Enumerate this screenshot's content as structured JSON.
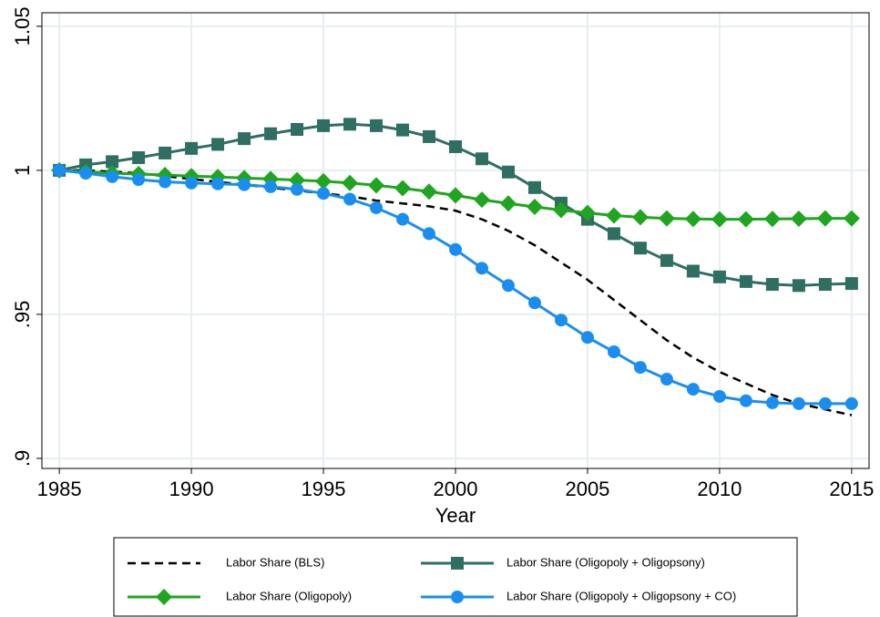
{
  "chart_data": {
    "type": "line",
    "x_label": "Year",
    "x": [
      1985,
      1986,
      1987,
      1988,
      1989,
      1990,
      1991,
      1992,
      1993,
      1994,
      1995,
      1996,
      1997,
      1998,
      1999,
      2000,
      2001,
      2002,
      2003,
      2004,
      2005,
      2006,
      2007,
      2008,
      2009,
      2010,
      2011,
      2012,
      2013,
      2014,
      2015
    ],
    "xlim": [
      1984.34,
      2015.66
    ],
    "xticks": [
      1985,
      1990,
      1995,
      2000,
      2005,
      2010,
      2015
    ],
    "ylim": [
      0.8965,
      1.0547
    ],
    "yticks": [
      {
        "value": 0.9,
        "label": ".9"
      },
      {
        "value": 0.95,
        "label": ".95"
      },
      1,
      1.05
    ],
    "grid": true,
    "series": [
      {
        "name": "Labor Share (BLS)",
        "color": "#000000",
        "marker": "none",
        "dashed": true,
        "values": [
          1.0,
          1.0,
          0.9995,
          0.999,
          0.998,
          0.997,
          0.996,
          0.995,
          0.994,
          0.993,
          0.992,
          0.991,
          0.9895,
          0.9885,
          0.9875,
          0.986,
          0.983,
          0.979,
          0.974,
          0.968,
          0.962,
          0.955,
          0.948,
          0.941,
          0.935,
          0.93,
          0.926,
          0.922,
          0.919,
          0.917,
          0.915
        ]
      },
      {
        "name": "Labor Share (Oligopoly + Oligopsony)",
        "color": "#2f6e62",
        "marker": "square",
        "dashed": false,
        "values": [
          1.0,
          1.0019,
          1.003,
          1.0044,
          1.006,
          1.0076,
          1.009,
          1.011,
          1.0127,
          1.0142,
          1.0155,
          1.016,
          1.0155,
          1.014,
          1.0117,
          1.0082,
          1.004,
          0.9994,
          0.994,
          0.9886,
          0.983,
          0.978,
          0.973,
          0.9687,
          0.965,
          0.963,
          0.9614,
          0.9604,
          0.96,
          0.9604,
          0.9607
        ]
      },
      {
        "name": "Labor Share (Oligopoly)",
        "color": "#1fa51f",
        "marker": "diamond",
        "dashed": false,
        "values": [
          1.0,
          0.9995,
          0.999,
          0.9987,
          0.9984,
          0.998,
          0.9977,
          0.9973,
          0.997,
          0.9966,
          0.9962,
          0.9956,
          0.9948,
          0.9938,
          0.9926,
          0.9913,
          0.9898,
          0.9885,
          0.9873,
          0.9862,
          0.9852,
          0.9843,
          0.9837,
          0.9833,
          0.9831,
          0.983,
          0.983,
          0.9831,
          0.9832,
          0.9833,
          0.9833
        ]
      },
      {
        "name": "Labor Share (Oligopoly + Oligopsony + CO)",
        "color": "#1a8ef0",
        "marker": "circle",
        "dashed": false,
        "values": [
          1.0,
          0.999,
          0.9978,
          0.9968,
          0.996,
          0.9956,
          0.9953,
          0.995,
          0.9943,
          0.9934,
          0.992,
          0.99,
          0.987,
          0.983,
          0.978,
          0.9725,
          0.966,
          0.96,
          0.954,
          0.948,
          0.942,
          0.937,
          0.9316,
          0.9275,
          0.924,
          0.9215,
          0.92,
          0.9193,
          0.919,
          0.919,
          0.919
        ]
      }
    ]
  }
}
